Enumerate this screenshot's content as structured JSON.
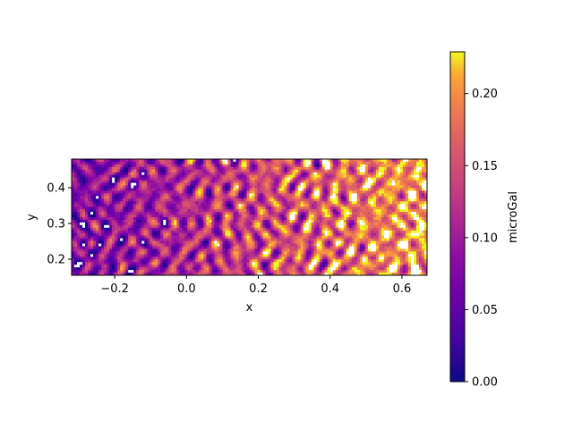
{
  "chart_data": {
    "type": "heatmap",
    "title": "",
    "xlabel": "x",
    "ylabel": "y",
    "xlim": [
      -0.32,
      0.67
    ],
    "ylim": [
      0.155,
      0.48
    ],
    "x_ticks": [
      -0.2,
      0.0,
      0.2,
      0.4,
      0.6
    ],
    "x_tick_labels": [
      "−0.2",
      "0.0",
      "0.2",
      "0.4",
      "0.6"
    ],
    "y_ticks": [
      0.2,
      0.3,
      0.4
    ],
    "y_tick_labels": [
      "0.2",
      "0.3",
      "0.4"
    ],
    "colormap": "plasma",
    "colorbar": {
      "label": "microGal",
      "vmin": 0.0,
      "vmax": 0.229,
      "ticks": [
        0.0,
        0.05,
        0.1,
        0.15,
        0.2
      ],
      "tick_labels": [
        "0.00",
        "0.05",
        "0.10",
        "0.15",
        "0.20"
      ]
    },
    "grid": false,
    "description_of_values": "noisy field increasing in magnitude toward larger x; white areas are masked/out-of-range cells"
  }
}
